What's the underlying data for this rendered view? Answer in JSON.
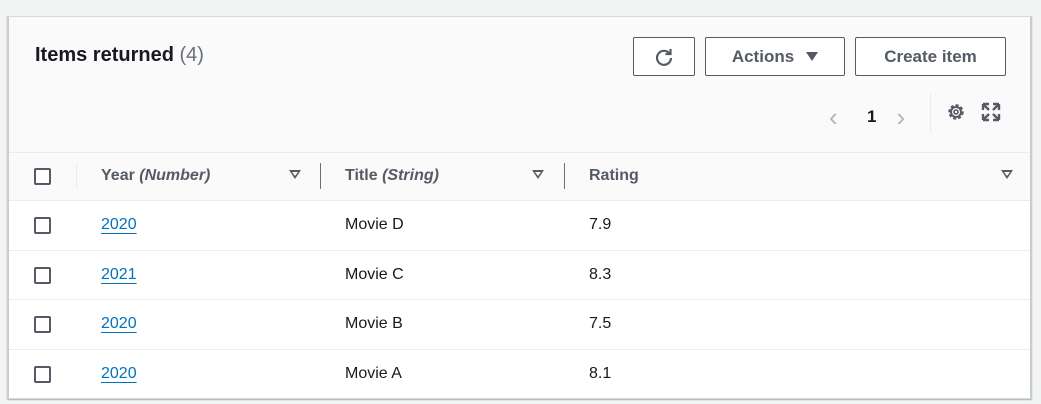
{
  "header": {
    "title": "Items returned",
    "count": "(4)"
  },
  "toolbar": {
    "refresh_icon": "refresh-icon",
    "actions_label": "Actions",
    "create_label": "Create item"
  },
  "pagination": {
    "current_page": "1"
  },
  "columns": [
    {
      "name": "Year",
      "type": "(Number)"
    },
    {
      "name": "Title",
      "type": "(String)"
    },
    {
      "name": "Rating",
      "type": ""
    }
  ],
  "rows": [
    {
      "year": "2020",
      "title": "Movie D",
      "rating": "7.9"
    },
    {
      "year": "2021",
      "title": "Movie C",
      "rating": "8.3"
    },
    {
      "year": "2020",
      "title": "Movie B",
      "rating": "7.5"
    },
    {
      "year": "2020",
      "title": "Movie A",
      "rating": "8.1"
    }
  ],
  "colors": {
    "link": "#0073bb",
    "text": "#16191f",
    "secondary": "#545b64"
  }
}
